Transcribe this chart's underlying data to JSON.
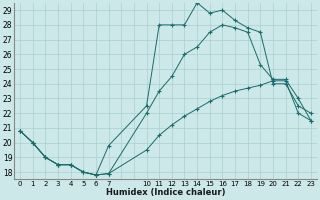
{
  "xlabel": "Humidex (Indice chaleur)",
  "ylabel": "",
  "bg_color": "#cce8e8",
  "grid_color": "#aacfcf",
  "line_color": "#1a6b6b",
  "xlim": [
    -0.5,
    23.5
  ],
  "ylim": [
    17.5,
    29.5
  ],
  "xtick_positions": [
    0,
    1,
    2,
    3,
    4,
    5,
    6,
    7,
    8,
    9,
    10,
    11,
    12,
    13,
    14,
    15,
    16,
    17,
    18,
    19,
    20,
    21,
    22,
    23
  ],
  "xtick_labels": [
    "0",
    "1",
    "2",
    "3",
    "4",
    "5",
    "6",
    "7",
    "",
    "",
    "10",
    "11",
    "12",
    "13",
    "14",
    "15",
    "16",
    "17",
    "18",
    "19",
    "20",
    "21",
    "22",
    "23"
  ],
  "yticks": [
    18,
    19,
    20,
    21,
    22,
    23,
    24,
    25,
    26,
    27,
    28,
    29
  ],
  "series1_x": [
    0,
    1,
    2,
    3,
    4,
    5,
    6,
    7,
    10,
    11,
    12,
    13,
    14,
    15,
    16,
    17,
    18,
    19,
    20,
    21,
    22,
    23
  ],
  "series1_y": [
    20.8,
    20.0,
    19.0,
    18.5,
    18.5,
    18.0,
    17.8,
    17.9,
    22.0,
    23.5,
    24.5,
    26.0,
    26.5,
    27.5,
    28.0,
    27.8,
    27.5,
    25.3,
    24.3,
    24.3,
    23.0,
    21.5
  ],
  "series2_x": [
    0,
    1,
    2,
    3,
    4,
    5,
    6,
    7,
    10,
    11,
    12,
    13,
    14,
    15,
    16,
    17,
    18,
    19,
    20,
    21,
    22,
    23
  ],
  "series2_y": [
    20.8,
    20.0,
    19.0,
    18.5,
    18.5,
    18.0,
    17.8,
    19.8,
    22.5,
    28.0,
    28.0,
    28.0,
    29.5,
    28.8,
    29.0,
    28.3,
    27.8,
    27.5,
    24.0,
    24.0,
    22.5,
    22.0
  ],
  "series3_x": [
    0,
    1,
    2,
    3,
    4,
    5,
    6,
    7,
    10,
    11,
    12,
    13,
    14,
    15,
    16,
    17,
    18,
    19,
    20,
    21,
    22,
    23
  ],
  "series3_y": [
    20.8,
    20.0,
    19.0,
    18.5,
    18.5,
    18.0,
    17.8,
    17.9,
    19.5,
    20.5,
    21.2,
    21.8,
    22.3,
    22.8,
    23.2,
    23.5,
    23.7,
    23.9,
    24.2,
    24.2,
    22.0,
    21.5
  ]
}
